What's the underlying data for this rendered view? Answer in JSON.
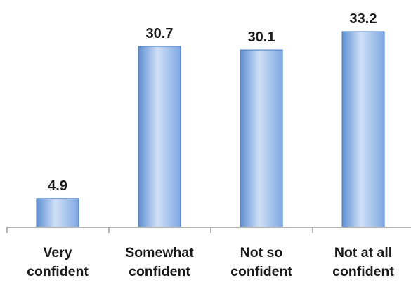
{
  "chart_data": {
    "type": "bar",
    "categories": [
      [
        "Very",
        "confident"
      ],
      [
        "Somewhat",
        "confident"
      ],
      [
        "Not so",
        "confident"
      ],
      [
        "Not at all",
        "confident"
      ]
    ],
    "values": [
      4.9,
      30.7,
      30.1,
      33.2
    ],
    "data_labels": [
      "4.9",
      "30.7",
      "30.1",
      "33.2"
    ],
    "title": "",
    "xlabel": "",
    "ylabel": "",
    "ylim": [
      0,
      33.2
    ],
    "grid": false,
    "legend": "none",
    "colors": {
      "bar_light": "#cfe0f6",
      "bar_mid": "#8fb6ea",
      "bar_dark": "#5f8fd2",
      "bar_edge": "#4a78bd",
      "axis": "#9a9a9a",
      "text": "#1a1a1a"
    }
  }
}
